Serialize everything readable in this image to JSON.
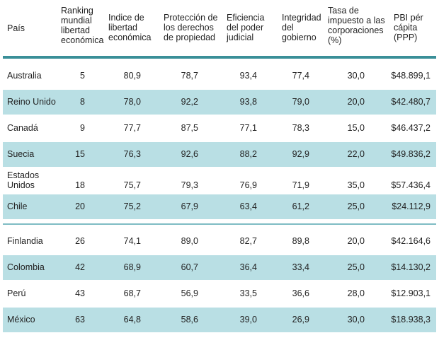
{
  "headers": {
    "country": "País",
    "ranking": [
      "Ranking",
      "mundial",
      "libertad",
      "económica"
    ],
    "index": [
      "Indice de",
      "libertad",
      "económica"
    ],
    "property": [
      "Protección de",
      "los derechos",
      "de propiedad"
    ],
    "judicial": [
      "Eficiencia",
      "del poder",
      "judicial"
    ],
    "integrity": [
      "Integridad",
      "del",
      "gobierno"
    ],
    "tax": [
      "Tasa de",
      "impuesto a las",
      "corporaciones",
      "(%)"
    ],
    "gdp": [
      "PBI pér",
      "cápita",
      "(PPP)"
    ]
  },
  "rows": [
    {
      "country": [
        "Australia"
      ],
      "ranking": "5",
      "index": "80,9",
      "property": "78,7",
      "judicial": "93,4",
      "integrity": "77,4",
      "tax": "30,0",
      "gdp": "$48.899,1"
    },
    {
      "country": [
        "Reino Unido"
      ],
      "ranking": "8",
      "index": "78,0",
      "property": "92,2",
      "judicial": "93,8",
      "integrity": "79,0",
      "tax": "20,0",
      "gdp": "$42.480,7"
    },
    {
      "country": [
        "Canadá"
      ],
      "ranking": "9",
      "index": "77,7",
      "property": "87,5",
      "judicial": "77,1",
      "integrity": "78,3",
      "tax": "15,0",
      "gdp": "$46.437,2"
    },
    {
      "country": [
        "Suecia"
      ],
      "ranking": "15",
      "index": "76,3",
      "property": "92,6",
      "judicial": "88,2",
      "integrity": "92,9",
      "tax": "22,0",
      "gdp": "$49.836,2"
    },
    {
      "country": [
        "Estados",
        "Unidos"
      ],
      "ranking": "18",
      "index": "75,7",
      "property": "79,3",
      "judicial": "76,9",
      "integrity": "71,9",
      "tax": "35,0",
      "gdp": "$57.436,4"
    },
    {
      "country": [
        "Chile"
      ],
      "ranking": "20",
      "index": "75,2",
      "property": "67,9",
      "judicial": "63,4",
      "integrity": "61,2",
      "tax": "25,0",
      "gdp": "$24.112,9"
    },
    {
      "country": [
        "Finlandia"
      ],
      "ranking": "26",
      "index": "74,1",
      "property": "89,0",
      "judicial": "82,7",
      "integrity": "89,8",
      "tax": "20,0",
      "gdp": "$42.164,6"
    },
    {
      "country": [
        "Colombia"
      ],
      "ranking": "42",
      "index": "68,9",
      "property": "60,7",
      "judicial": "36,4",
      "integrity": "33,4",
      "tax": "25,0",
      "gdp": "$14.130,2"
    },
    {
      "country": [
        "Perú"
      ],
      "ranking": "43",
      "index": "68,7",
      "property": "56,9",
      "judicial": "33,5",
      "integrity": "36,6",
      "tax": "28,0",
      "gdp": "$12.903,1"
    },
    {
      "country": [
        "México"
      ],
      "ranking": "63",
      "index": "64,8",
      "property": "58,6",
      "judicial": "39,0",
      "integrity": "26,9",
      "tax": "30,0",
      "gdp": "$18.938,3"
    }
  ],
  "colors": {
    "rule": "#3a8f98",
    "shade": "#b9dfe4"
  }
}
